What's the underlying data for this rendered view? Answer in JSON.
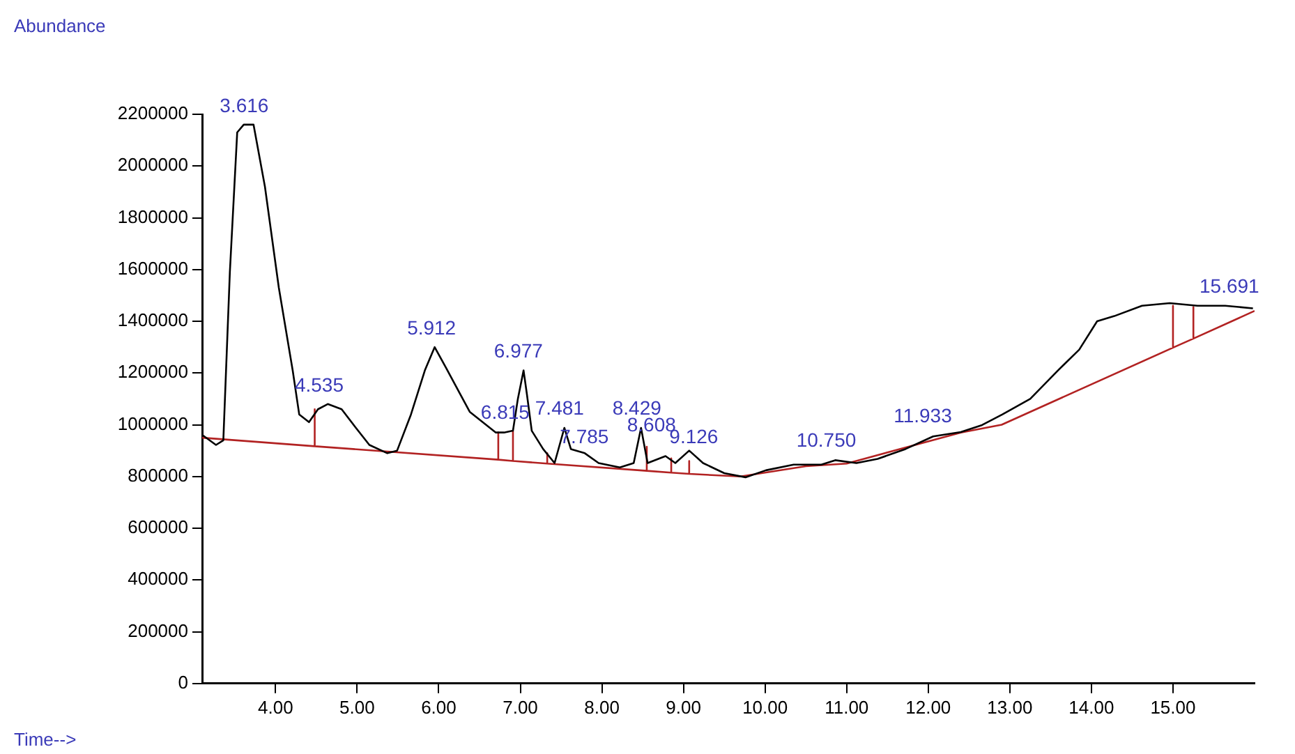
{
  "chart_data": {
    "type": "line",
    "xlabel": "Time-->",
    "ylabel": "Abundance",
    "legend": false,
    "marker": "none",
    "line_style": "solid",
    "xlim": [
      3.1,
      16.0
    ],
    "ylim": [
      0,
      2200000
    ],
    "xticks": [
      {
        "value": 4,
        "label": "4.00"
      },
      {
        "value": 5,
        "label": "5.00"
      },
      {
        "value": 6,
        "label": "6.00"
      },
      {
        "value": 7,
        "label": "7.00"
      },
      {
        "value": 8,
        "label": "8.00"
      },
      {
        "value": 9,
        "label": "9.00"
      },
      {
        "value": 10,
        "label": "10.00"
      },
      {
        "value": 11,
        "label": "11.00"
      },
      {
        "value": 12,
        "label": "12.00"
      },
      {
        "value": 13,
        "label": "13.00"
      },
      {
        "value": 14,
        "label": "14.00"
      },
      {
        "value": 15,
        "label": "15.00"
      }
    ],
    "yticks": [
      0,
      200000,
      400000,
      600000,
      800000,
      1000000,
      1200000,
      1400000,
      1600000,
      1800000,
      2000000,
      2200000
    ],
    "series": [
      {
        "type": "line",
        "color": "#000000",
        "x": [
          3.1,
          3.27,
          3.36,
          3.44,
          3.53,
          3.61,
          3.73,
          3.87,
          4.04,
          4.21,
          4.29,
          4.41,
          4.52,
          4.64,
          4.81,
          4.98,
          5.15,
          5.37,
          5.49,
          5.66,
          5.83,
          5.95,
          6.09,
          6.26,
          6.38,
          6.7,
          6.8,
          6.91,
          6.97,
          7.04,
          7.08,
          7.14,
          7.28,
          7.42,
          7.54,
          7.62,
          7.79,
          7.96,
          8.22,
          8.39,
          8.48,
          8.56,
          8.78,
          8.9,
          9.07,
          9.24,
          9.5,
          9.76,
          10.01,
          10.35,
          10.69,
          10.86,
          11.12,
          11.38,
          11.72,
          12.06,
          12.4,
          12.66,
          12.91,
          13.25,
          13.59,
          13.85,
          14.07,
          14.28,
          14.62,
          14.96,
          15.3,
          15.64,
          15.98
        ],
        "values": [
          961000,
          922000,
          940000,
          1590000,
          2130000,
          2160000,
          2160000,
          1920000,
          1530000,
          1210000,
          1040000,
          1010000,
          1060000,
          1080000,
          1060000,
          990000,
          922000,
          890000,
          900000,
          1040000,
          1210000,
          1300000,
          1220000,
          1120000,
          1050000,
          970000,
          970000,
          977000,
          1100000,
          1210000,
          1120000,
          977000,
          906000,
          852000,
          988000,
          906000,
          890000,
          852000,
          835000,
          852000,
          988000,
          852000,
          879000,
          852000,
          900000,
          852000,
          813000,
          797000,
          824000,
          846000,
          846000,
          863000,
          852000,
          868000,
          906000,
          955000,
          972000,
          999000,
          1040000,
          1100000,
          1210000,
          1290000,
          1400000,
          1420000,
          1460000,
          1470000,
          1460000,
          1460000,
          1450000
        ]
      },
      {
        "type": "line",
        "color": "#b22222",
        "x": [
          3.1,
          4.48,
          4.48,
          4.48,
          6.73,
          6.73,
          6.73,
          6.91,
          6.91,
          6.91,
          7.33,
          7.33,
          7.33,
          8.55,
          8.55,
          8.55,
          8.85,
          8.85,
          8.85,
          9.07,
          9.07,
          9.07,
          9.7,
          10.5,
          11.0,
          12.4,
          12.9,
          15.0,
          15.0,
          15.0,
          15.25,
          15.25,
          15.25,
          16.0
        ],
        "values": [
          950000,
          917000,
          1060000,
          917000,
          865000,
          970000,
          865000,
          860000,
          975000,
          860000,
          850000,
          890000,
          850000,
          822000,
          915000,
          822000,
          815000,
          870000,
          815000,
          810000,
          860000,
          810000,
          800000,
          840000,
          850000,
          970000,
          1000000,
          1298000,
          1460000,
          1298000,
          1333000,
          1455000,
          1333000,
          1440000
        ]
      }
    ],
    "annotations": [
      {
        "text": "3.616",
        "x": 3.616,
        "y": 2160000
      },
      {
        "text": "4.535",
        "x": 4.535,
        "y": 1080000
      },
      {
        "text": "5.912",
        "x": 5.912,
        "y": 1300000
      },
      {
        "text": "6.815",
        "x": 6.815,
        "y": 975000
      },
      {
        "text": "6.977",
        "x": 6.977,
        "y": 1210000
      },
      {
        "text": "7.481",
        "x": 7.481,
        "y": 990000
      },
      {
        "text": "7.785",
        "x": 7.785,
        "y": 880000
      },
      {
        "text": "8.429",
        "x": 8.429,
        "y": 990000
      },
      {
        "text": "8.608",
        "x": 8.608,
        "y": 925000
      },
      {
        "text": "9.126",
        "x": 9.126,
        "y": 880000
      },
      {
        "text": "10.750",
        "x": 10.75,
        "y": 865000
      },
      {
        "text": "11.933",
        "x": 11.933,
        "y": 960000
      },
      {
        "text": "15.691",
        "x": 15.691,
        "y": 1460000
      }
    ]
  }
}
